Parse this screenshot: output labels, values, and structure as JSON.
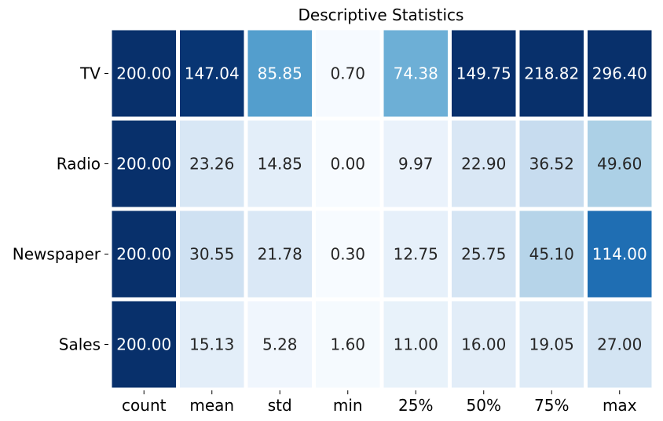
{
  "chart_data": {
    "type": "heatmap",
    "title": "Descriptive Statistics",
    "colormap": "Blues",
    "grid_line_color": "#ffffff",
    "dark_text_color": "#262626",
    "light_text_color": "#ffffff",
    "rows": [
      "TV",
      "Radio",
      "Newspaper",
      "Sales"
    ],
    "columns": [
      "count",
      "mean",
      "std",
      "min",
      "25%",
      "50%",
      "75%",
      "max"
    ],
    "values": [
      [
        200.0,
        147.04,
        85.85,
        0.7,
        74.38,
        149.75,
        218.82,
        296.4
      ],
      [
        200.0,
        23.26,
        14.85,
        0.0,
        9.97,
        22.9,
        36.52,
        49.6
      ],
      [
        200.0,
        30.55,
        21.78,
        0.3,
        12.75,
        25.75,
        45.1,
        114.0
      ],
      [
        200.0,
        15.13,
        5.28,
        1.6,
        11.0,
        16.0,
        19.05,
        27.0
      ]
    ],
    "labels": [
      [
        "200.00",
        "147.04",
        "85.85",
        "0.70",
        "74.38",
        "149.75",
        "218.82",
        "296.40"
      ],
      [
        "200.00",
        "23.26",
        "14.85",
        "0.00",
        "9.97",
        "22.90",
        "36.52",
        "49.60"
      ],
      [
        "200.00",
        "30.55",
        "21.78",
        "0.30",
        "12.75",
        "25.75",
        "45.10",
        "114.00"
      ],
      [
        "200.00",
        "15.13",
        "5.28",
        "1.60",
        "11.00",
        "16.00",
        "19.05",
        "27.00"
      ]
    ],
    "vmin": 0,
    "vmax": 150,
    "colorbar": false
  }
}
